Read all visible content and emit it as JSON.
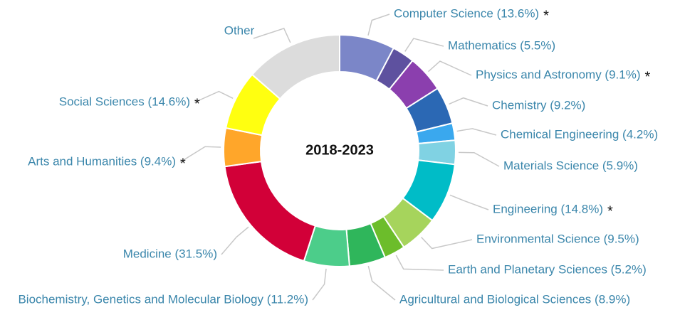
{
  "chart_data": {
    "type": "donut",
    "center_label": "2018-2023",
    "labels": [
      "Computer Science (13.6%)",
      "Mathematics (5.5%)",
      "Physics and Astronomy (9.1%)",
      "Chemistry (9.2%)",
      "Chemical Engineering (4.2%)",
      "Materials Science (5.9%)",
      "Engineering (14.8%)",
      "Environmental Science (9.5%)",
      "Earth and Planetary Sciences (5.2%)",
      "Agricultural and Biological Sciences (8.9%)",
      "Biochemistry, Genetics and Molecular Biology (11.2%)",
      "Medicine (31.5%)",
      "Arts and Humanities (9.4%)",
      "Social Sciences (14.6%)",
      "Other"
    ],
    "values": [
      13.6,
      5.5,
      9.1,
      9.2,
      4.2,
      5.9,
      14.8,
      9.5,
      5.2,
      8.9,
      11.2,
      31.5,
      9.4,
      14.6,
      24
    ],
    "colors": [
      "#7b86c8",
      "#5e519f",
      "#8b3fae",
      "#2b68b4",
      "#3aa8ee",
      "#80d2e3",
      "#00bcc7",
      "#a6d45c",
      "#6cbd2b",
      "#2fb65b",
      "#4ccd8a",
      "#d20038",
      "#ffa62a",
      "#ffff10",
      "#dcdcdc"
    ],
    "starred": [
      true,
      false,
      true,
      false,
      false,
      false,
      true,
      false,
      false,
      false,
      false,
      false,
      true,
      true,
      false
    ],
    "star_text": "*"
  }
}
